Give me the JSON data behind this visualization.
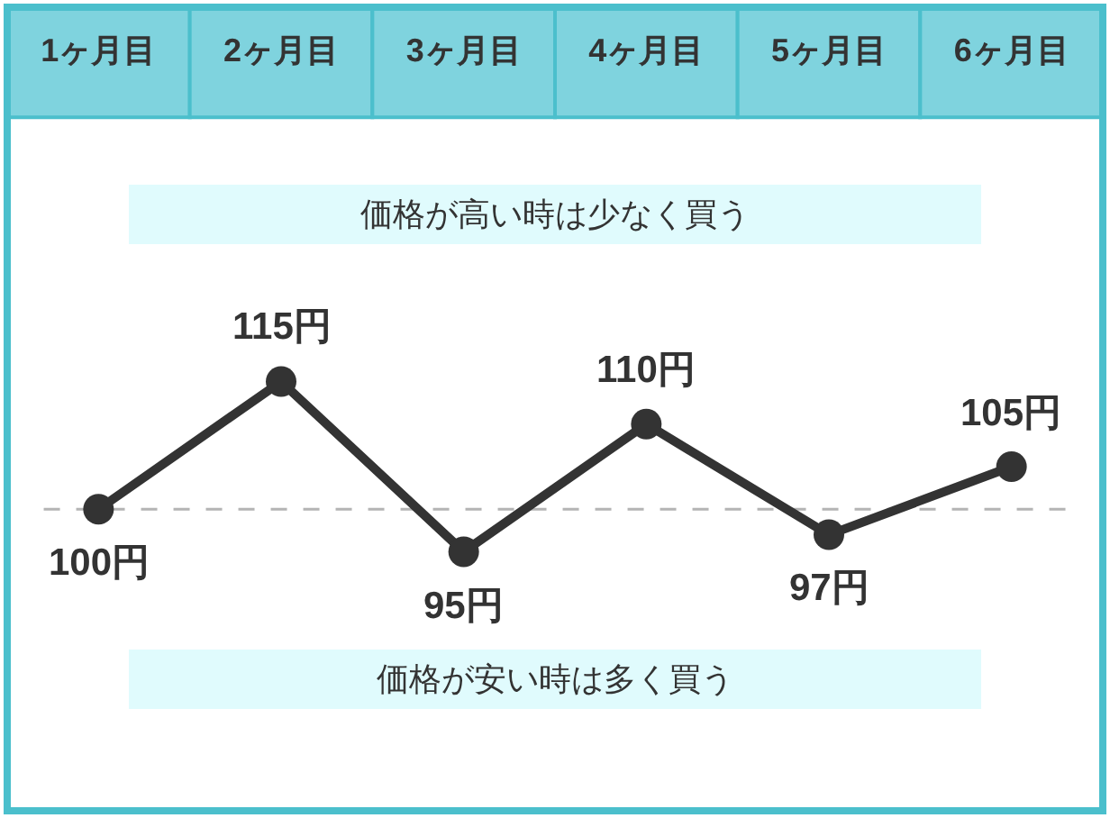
{
  "chart_data": {
    "type": "line",
    "categories": [
      "1ヶ月目",
      "2ヶ月目",
      "3ヶ月目",
      "4ヶ月目",
      "5ヶ月目",
      "6ヶ月目"
    ],
    "series": [
      {
        "color": "#333333",
        "values": [
          100,
          115,
          95,
          110,
          97,
          105
        ],
        "value_labels": [
          "100円",
          "115円",
          "95円",
          "110円",
          "97円",
          "105円"
        ]
      }
    ],
    "marker": "circle",
    "line_style": "solid",
    "grid": false,
    "legend": false,
    "ref_lines": [
      {
        "axis": "y",
        "value": 100,
        "color": "#b4b4b4",
        "line_style": "dashed"
      }
    ],
    "annotations": [
      "価格が高い時は少なく買う",
      "価格が安い時は多く買う"
    ]
  }
}
